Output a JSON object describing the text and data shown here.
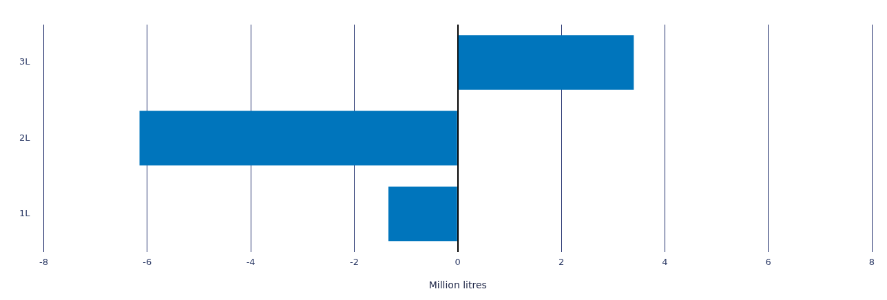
{
  "chart_data": {
    "type": "bar",
    "orientation": "horizontal",
    "categories": [
      "3L",
      "2L",
      "1L"
    ],
    "values": [
      3.4,
      -6.15,
      -1.34
    ],
    "color": "#0075bc",
    "xlim": [
      -8,
      8
    ],
    "xticks": [
      -8,
      -6,
      -4,
      -2,
      0,
      2,
      4,
      6,
      8
    ],
    "xlabel": "Million litres",
    "grid": "x",
    "legend": false
  }
}
